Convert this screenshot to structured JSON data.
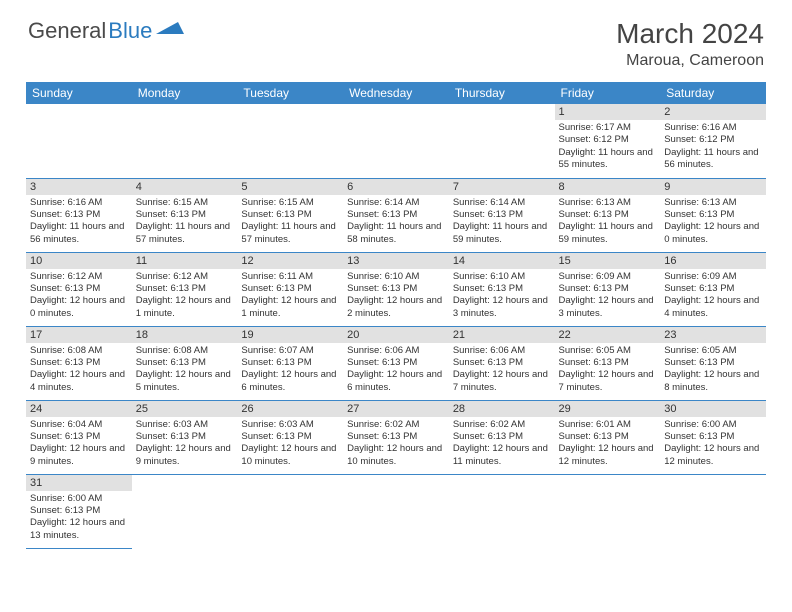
{
  "logo": {
    "general": "General",
    "blue": "Blue"
  },
  "title": "March 2024",
  "location": "Maroua, Cameroon",
  "colors": {
    "header_bg": "#3b86c7",
    "header_text": "#ffffff",
    "daynum_bg": "#e1e1e1",
    "border": "#3b86c7",
    "text": "#333333",
    "logo_gray": "#4a4a4a",
    "logo_blue": "#2b7bbf"
  },
  "day_headers": [
    "Sunday",
    "Monday",
    "Tuesday",
    "Wednesday",
    "Thursday",
    "Friday",
    "Saturday"
  ],
  "weeks": [
    [
      {
        "n": "",
        "sr": "",
        "ss": "",
        "dl": ""
      },
      {
        "n": "",
        "sr": "",
        "ss": "",
        "dl": ""
      },
      {
        "n": "",
        "sr": "",
        "ss": "",
        "dl": ""
      },
      {
        "n": "",
        "sr": "",
        "ss": "",
        "dl": ""
      },
      {
        "n": "",
        "sr": "",
        "ss": "",
        "dl": ""
      },
      {
        "n": "1",
        "sr": "Sunrise: 6:17 AM",
        "ss": "Sunset: 6:12 PM",
        "dl": "Daylight: 11 hours and 55 minutes."
      },
      {
        "n": "2",
        "sr": "Sunrise: 6:16 AM",
        "ss": "Sunset: 6:12 PM",
        "dl": "Daylight: 11 hours and 56 minutes."
      }
    ],
    [
      {
        "n": "3",
        "sr": "Sunrise: 6:16 AM",
        "ss": "Sunset: 6:13 PM",
        "dl": "Daylight: 11 hours and 56 minutes."
      },
      {
        "n": "4",
        "sr": "Sunrise: 6:15 AM",
        "ss": "Sunset: 6:13 PM",
        "dl": "Daylight: 11 hours and 57 minutes."
      },
      {
        "n": "5",
        "sr": "Sunrise: 6:15 AM",
        "ss": "Sunset: 6:13 PM",
        "dl": "Daylight: 11 hours and 57 minutes."
      },
      {
        "n": "6",
        "sr": "Sunrise: 6:14 AM",
        "ss": "Sunset: 6:13 PM",
        "dl": "Daylight: 11 hours and 58 minutes."
      },
      {
        "n": "7",
        "sr": "Sunrise: 6:14 AM",
        "ss": "Sunset: 6:13 PM",
        "dl": "Daylight: 11 hours and 59 minutes."
      },
      {
        "n": "8",
        "sr": "Sunrise: 6:13 AM",
        "ss": "Sunset: 6:13 PM",
        "dl": "Daylight: 11 hours and 59 minutes."
      },
      {
        "n": "9",
        "sr": "Sunrise: 6:13 AM",
        "ss": "Sunset: 6:13 PM",
        "dl": "Daylight: 12 hours and 0 minutes."
      }
    ],
    [
      {
        "n": "10",
        "sr": "Sunrise: 6:12 AM",
        "ss": "Sunset: 6:13 PM",
        "dl": "Daylight: 12 hours and 0 minutes."
      },
      {
        "n": "11",
        "sr": "Sunrise: 6:12 AM",
        "ss": "Sunset: 6:13 PM",
        "dl": "Daylight: 12 hours and 1 minute."
      },
      {
        "n": "12",
        "sr": "Sunrise: 6:11 AM",
        "ss": "Sunset: 6:13 PM",
        "dl": "Daylight: 12 hours and 1 minute."
      },
      {
        "n": "13",
        "sr": "Sunrise: 6:10 AM",
        "ss": "Sunset: 6:13 PM",
        "dl": "Daylight: 12 hours and 2 minutes."
      },
      {
        "n": "14",
        "sr": "Sunrise: 6:10 AM",
        "ss": "Sunset: 6:13 PM",
        "dl": "Daylight: 12 hours and 3 minutes."
      },
      {
        "n": "15",
        "sr": "Sunrise: 6:09 AM",
        "ss": "Sunset: 6:13 PM",
        "dl": "Daylight: 12 hours and 3 minutes."
      },
      {
        "n": "16",
        "sr": "Sunrise: 6:09 AM",
        "ss": "Sunset: 6:13 PM",
        "dl": "Daylight: 12 hours and 4 minutes."
      }
    ],
    [
      {
        "n": "17",
        "sr": "Sunrise: 6:08 AM",
        "ss": "Sunset: 6:13 PM",
        "dl": "Daylight: 12 hours and 4 minutes."
      },
      {
        "n": "18",
        "sr": "Sunrise: 6:08 AM",
        "ss": "Sunset: 6:13 PM",
        "dl": "Daylight: 12 hours and 5 minutes."
      },
      {
        "n": "19",
        "sr": "Sunrise: 6:07 AM",
        "ss": "Sunset: 6:13 PM",
        "dl": "Daylight: 12 hours and 6 minutes."
      },
      {
        "n": "20",
        "sr": "Sunrise: 6:06 AM",
        "ss": "Sunset: 6:13 PM",
        "dl": "Daylight: 12 hours and 6 minutes."
      },
      {
        "n": "21",
        "sr": "Sunrise: 6:06 AM",
        "ss": "Sunset: 6:13 PM",
        "dl": "Daylight: 12 hours and 7 minutes."
      },
      {
        "n": "22",
        "sr": "Sunrise: 6:05 AM",
        "ss": "Sunset: 6:13 PM",
        "dl": "Daylight: 12 hours and 7 minutes."
      },
      {
        "n": "23",
        "sr": "Sunrise: 6:05 AM",
        "ss": "Sunset: 6:13 PM",
        "dl": "Daylight: 12 hours and 8 minutes."
      }
    ],
    [
      {
        "n": "24",
        "sr": "Sunrise: 6:04 AM",
        "ss": "Sunset: 6:13 PM",
        "dl": "Daylight: 12 hours and 9 minutes."
      },
      {
        "n": "25",
        "sr": "Sunrise: 6:03 AM",
        "ss": "Sunset: 6:13 PM",
        "dl": "Daylight: 12 hours and 9 minutes."
      },
      {
        "n": "26",
        "sr": "Sunrise: 6:03 AM",
        "ss": "Sunset: 6:13 PM",
        "dl": "Daylight: 12 hours and 10 minutes."
      },
      {
        "n": "27",
        "sr": "Sunrise: 6:02 AM",
        "ss": "Sunset: 6:13 PM",
        "dl": "Daylight: 12 hours and 10 minutes."
      },
      {
        "n": "28",
        "sr": "Sunrise: 6:02 AM",
        "ss": "Sunset: 6:13 PM",
        "dl": "Daylight: 12 hours and 11 minutes."
      },
      {
        "n": "29",
        "sr": "Sunrise: 6:01 AM",
        "ss": "Sunset: 6:13 PM",
        "dl": "Daylight: 12 hours and 12 minutes."
      },
      {
        "n": "30",
        "sr": "Sunrise: 6:00 AM",
        "ss": "Sunset: 6:13 PM",
        "dl": "Daylight: 12 hours and 12 minutes."
      }
    ],
    [
      {
        "n": "31",
        "sr": "Sunrise: 6:00 AM",
        "ss": "Sunset: 6:13 PM",
        "dl": "Daylight: 12 hours and 13 minutes."
      },
      {
        "n": "",
        "sr": "",
        "ss": "",
        "dl": ""
      },
      {
        "n": "",
        "sr": "",
        "ss": "",
        "dl": ""
      },
      {
        "n": "",
        "sr": "",
        "ss": "",
        "dl": ""
      },
      {
        "n": "",
        "sr": "",
        "ss": "",
        "dl": ""
      },
      {
        "n": "",
        "sr": "",
        "ss": "",
        "dl": ""
      },
      {
        "n": "",
        "sr": "",
        "ss": "",
        "dl": ""
      }
    ]
  ]
}
